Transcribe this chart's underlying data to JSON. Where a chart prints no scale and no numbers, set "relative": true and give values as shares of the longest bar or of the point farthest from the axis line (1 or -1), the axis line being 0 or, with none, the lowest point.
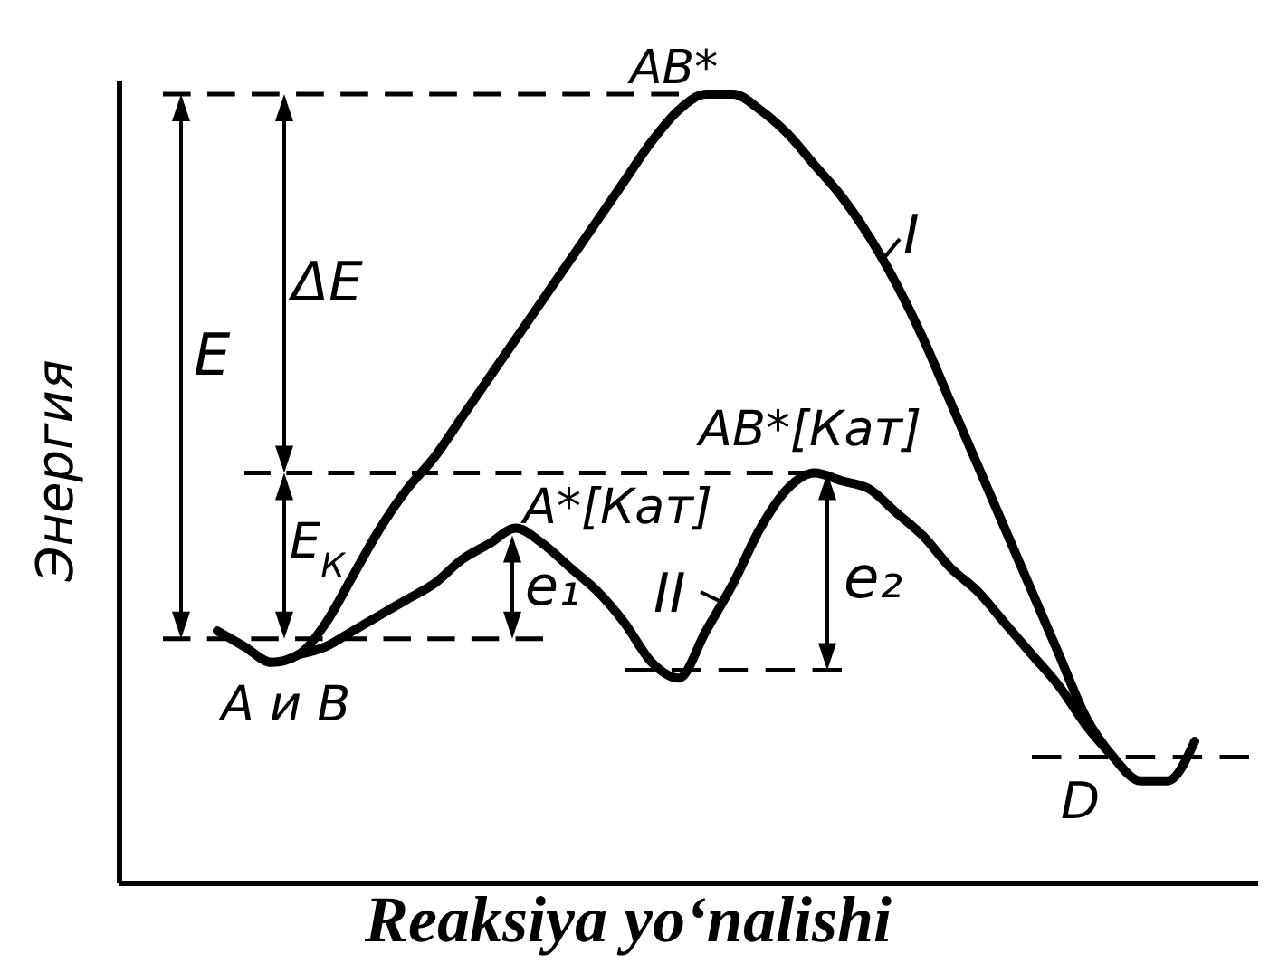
{
  "chart_data": {
    "type": "line",
    "relative": true,
    "xlabel": "Reaksiya yo‘nalishi",
    "ylabel": "Энергия",
    "categories": [
      null,
      null,
      null,
      null,
      null,
      null,
      null,
      null,
      null,
      null,
      null,
      null,
      null,
      null,
      null,
      null,
      null,
      null,
      null,
      null,
      null,
      null,
      null,
      null,
      null,
      null,
      null,
      null,
      null,
      null,
      null,
      null,
      null,
      null,
      null,
      null,
      null,
      null,
      null,
      null,
      null
    ],
    "series": [
      {
        "name": "I",
        "color": "#000000",
        "values": [
          null,
          null,
          0.32,
          0.3,
          0.28,
          0.29,
          0.33,
          0.39,
          0.45,
          0.5,
          0.54,
          0.59,
          0.64,
          0.69,
          0.74,
          0.79,
          0.84,
          0.89,
          0.94,
          0.98,
          1.0,
          1.0,
          0.98,
          0.95,
          0.91,
          0.87,
          0.82,
          0.76,
          0.69,
          0.61,
          0.53,
          0.45,
          0.37,
          0.29,
          0.21,
          0.16,
          0.13,
          0.13,
          0.18,
          null,
          null
        ]
      },
      {
        "name": "II",
        "color": "#000000",
        "values": [
          null,
          null,
          null,
          null,
          null,
          0.29,
          0.3,
          0.32,
          0.34,
          0.36,
          0.38,
          0.41,
          0.43,
          0.45,
          0.43,
          0.4,
          0.37,
          0.33,
          0.28,
          0.26,
          0.32,
          0.38,
          0.45,
          0.5,
          0.52,
          0.51,
          0.5,
          0.47,
          0.44,
          0.4,
          0.37,
          0.33,
          0.29,
          0.25,
          0.2,
          0.16,
          null,
          null,
          null,
          null,
          null
        ]
      },
      {
        "color": "#000000",
        "line_style": "dashed",
        "values": [
          1.0,
          1.0,
          1.0,
          1.0,
          1.0,
          1.0,
          1.0,
          1.0,
          1.0,
          1.0,
          1.0,
          1.0,
          1.0,
          1.0,
          1.0,
          1.0,
          1.0,
          1.0,
          1.0,
          1.0,
          null,
          null,
          null,
          null,
          null,
          null,
          null,
          null,
          null,
          null,
          null,
          null,
          null,
          null,
          null,
          null,
          null,
          null,
          null,
          null,
          null
        ]
      },
      {
        "color": "#000000",
        "line_style": "dashed",
        "values": [
          null,
          null,
          null,
          0.52,
          0.52,
          0.52,
          0.52,
          0.52,
          0.52,
          0.52,
          0.52,
          0.52,
          0.52,
          0.52,
          0.52,
          0.52,
          0.52,
          0.52,
          0.52,
          0.52,
          0.52,
          0.52,
          0.52,
          0.52,
          0.52,
          null,
          null,
          null,
          null,
          null,
          null,
          null,
          null,
          null,
          null,
          null,
          null,
          null,
          null,
          null,
          null
        ]
      },
      {
        "color": "#000000",
        "line_style": "dashed",
        "values": [
          0.31,
          0.31,
          0.31,
          0.31,
          0.31,
          0.31,
          0.31,
          0.31,
          0.31,
          0.31,
          0.31,
          0.31,
          0.31,
          0.31,
          0.31,
          null,
          null,
          null,
          null,
          null,
          null,
          null,
          null,
          null,
          null,
          null,
          null,
          null,
          null,
          null,
          null,
          null,
          null,
          null,
          null,
          null,
          null,
          null,
          null,
          null,
          null
        ]
      },
      {
        "color": "#000000",
        "line_style": "dashed",
        "values": [
          null,
          null,
          null,
          null,
          null,
          null,
          null,
          null,
          null,
          null,
          null,
          null,
          null,
          null,
          null,
          null,
          null,
          0.27,
          0.27,
          0.27,
          0.27,
          0.27,
          0.27,
          0.27,
          0.27,
          0.27,
          null,
          null,
          null,
          null,
          null,
          null,
          null,
          null,
          null,
          null,
          null,
          null,
          null,
          null,
          null
        ]
      },
      {
        "color": "#000000",
        "line_style": "dashed",
        "values": [
          null,
          null,
          null,
          null,
          null,
          null,
          null,
          null,
          null,
          null,
          null,
          null,
          null,
          null,
          null,
          null,
          null,
          null,
          null,
          null,
          null,
          null,
          null,
          null,
          null,
          null,
          null,
          null,
          null,
          null,
          null,
          null,
          0.16,
          0.16,
          0.16,
          0.16,
          0.16,
          0.16,
          0.16,
          0.16,
          0.16
        ]
      }
    ],
    "annotations": [
      "AB*",
      "AB*[Кат]",
      "A*[Кат]",
      "A и B",
      "D",
      "E",
      "ΔE",
      "E$_{К}$",
      "e₁",
      "e₂"
    ]
  }
}
